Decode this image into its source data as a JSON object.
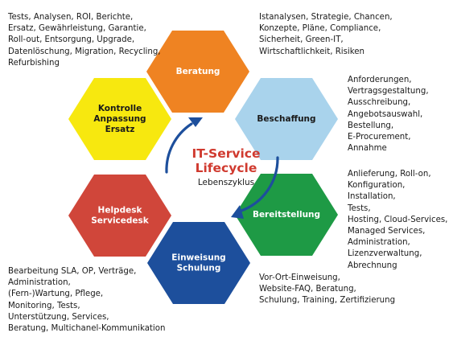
{
  "center": {
    "title_line1": "IT-Service",
    "title_line2": "Lifecycle",
    "subtitle": "Lebenszyklus",
    "title_color": "#d03a2f",
    "arrow_color": "#1d4f9c"
  },
  "hexagons": [
    {
      "id": "beratung",
      "lines": [
        "Beratung"
      ],
      "color": "#ef8322",
      "text_color": "#ffffff"
    },
    {
      "id": "beschaffung",
      "lines": [
        "Beschaffung"
      ],
      "color": "#a9d3ec",
      "text_color": "#1a1a1a"
    },
    {
      "id": "bereitstellung",
      "lines": [
        "Bereitstellung"
      ],
      "color": "#1e9a45",
      "text_color": "#ffffff"
    },
    {
      "id": "einweisung",
      "lines": [
        "Einweisung",
        "Schulung"
      ],
      "color": "#1d4f9c",
      "text_color": "#ffffff"
    },
    {
      "id": "helpdesk",
      "lines": [
        "Helpdesk",
        "Servicedesk"
      ],
      "color": "#d0463a",
      "text_color": "#ffffff"
    },
    {
      "id": "kontrolle",
      "lines": [
        "Kontrolle",
        "Anpassung",
        "Ersatz"
      ],
      "color": "#f7e80f",
      "text_color": "#1a1a1a"
    }
  ],
  "notes": {
    "top_left": [
      "Tests, Analysen, ROI, Berichte,",
      "Ersatz, Gewährleistung, Garantie,",
      "Roll-out, Entsorgung, Upgrade,",
      "Datenlöschung, Migration, Recycling,",
      "Refurbishing"
    ],
    "top_right": [
      "Istanalysen, Strategie, Chancen,",
      "Konzepte, Pläne, Compliance,",
      "Sicherheit, Green-IT,",
      "Wirtschaftlichkeit, Risiken"
    ],
    "right_1": [
      "Anforderungen,",
      "Vertragsgestaltung,",
      "Ausschreibung,",
      "Angebotsauswahl,",
      "Bestellung,",
      "E-Procurement,",
      "Annahme"
    ],
    "right_2": [
      "Anlieferung, Roll-on,",
      "Konfiguration,",
      "Installation,",
      "Tests,",
      "Hosting, Cloud-Services,",
      "Managed Services,",
      "Administration,",
      "Lizenzverwaltung,",
      "Abrechnung"
    ],
    "bottom_right": [
      "Vor-Ort-Einweisung,",
      "Website-FAQ, Beratung,",
      "Schulung, Training, Zertifizierung"
    ],
    "bottom_left": [
      "Bearbeitung SLA, OP, Verträge,",
      "Administration,",
      "(Fern-)Wartung, Pflege,",
      "Monitoring, Tests,",
      "Unterstützung, Services,",
      "Beratung, Multichanel-Kommunikation"
    ]
  }
}
